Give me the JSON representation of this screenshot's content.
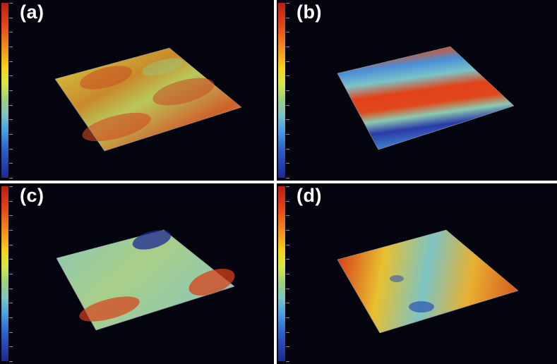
{
  "panels": [
    {
      "label": "(a)"
    },
    {
      "label": "(b)"
    },
    {
      "label": "(c)"
    },
    {
      "label": "(d)"
    }
  ],
  "colors": {
    "background": "#04040f",
    "divider": "#ffffff",
    "scale_top": "#b81f14",
    "scale_bottom": "#1c2890"
  }
}
